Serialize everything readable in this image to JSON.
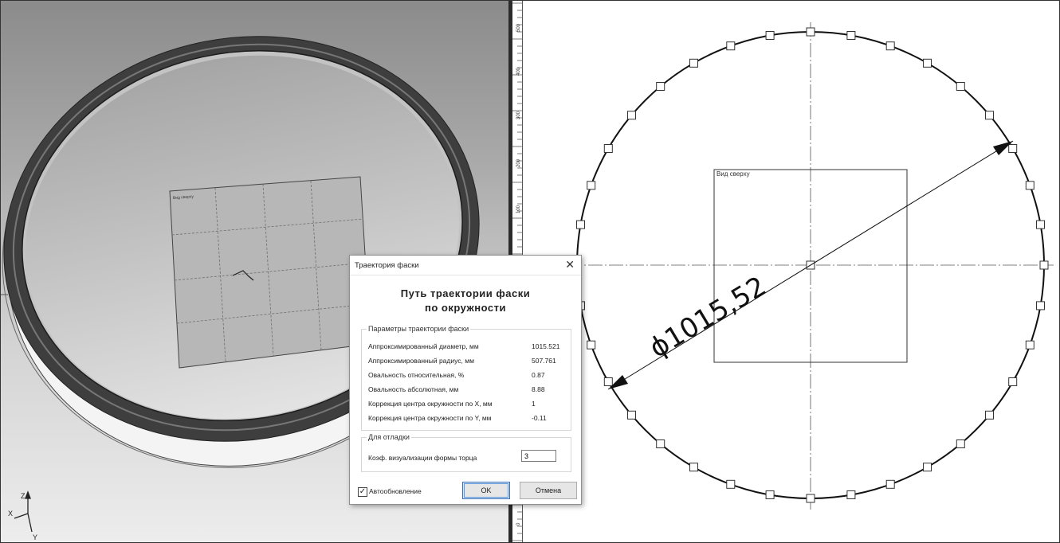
{
  "viewport3d": {
    "sheet_label": "Вид сверху",
    "axes": {
      "x": "X",
      "y": "Y",
      "z": "Z"
    }
  },
  "ruler": {
    "ticks": [
      "500",
      "400",
      "300",
      "200",
      "100",
      "0"
    ]
  },
  "drawing": {
    "view_label": "Вид сверху",
    "dimension_text": "ϕ1015,52",
    "diameter_value": 1015.52
  },
  "dialog": {
    "title": "Траектория фаски",
    "close_glyph": "✕",
    "heading_line1": "Путь траектории фаски",
    "heading_line2": "по окружности",
    "params_group_label": "Параметры траектории фаски",
    "params": [
      {
        "label": "Аппроксимированный диаметр, мм",
        "value": "1015.521"
      },
      {
        "label": "Аппроксимированный радиус, мм",
        "value": "507.761"
      },
      {
        "label": "Овальность относительная, %",
        "value": "0.87"
      },
      {
        "label": "Овальность абсолютная, мм",
        "value": "8.88"
      },
      {
        "label": "Коррекция центра окружности по X, мм",
        "value": "1"
      },
      {
        "label": "Коррекция центра окружности по Y, мм",
        "value": "-0.11"
      }
    ],
    "debug_group_label": "Для отладки",
    "debug_field_label": "Коэф. визуализации формы торца",
    "debug_field_value": "3",
    "autoupdate_label": "Автообновление",
    "autoupdate_checked": true,
    "check_glyph": "✓",
    "ok_label": "OK",
    "cancel_label": "Отмена"
  }
}
